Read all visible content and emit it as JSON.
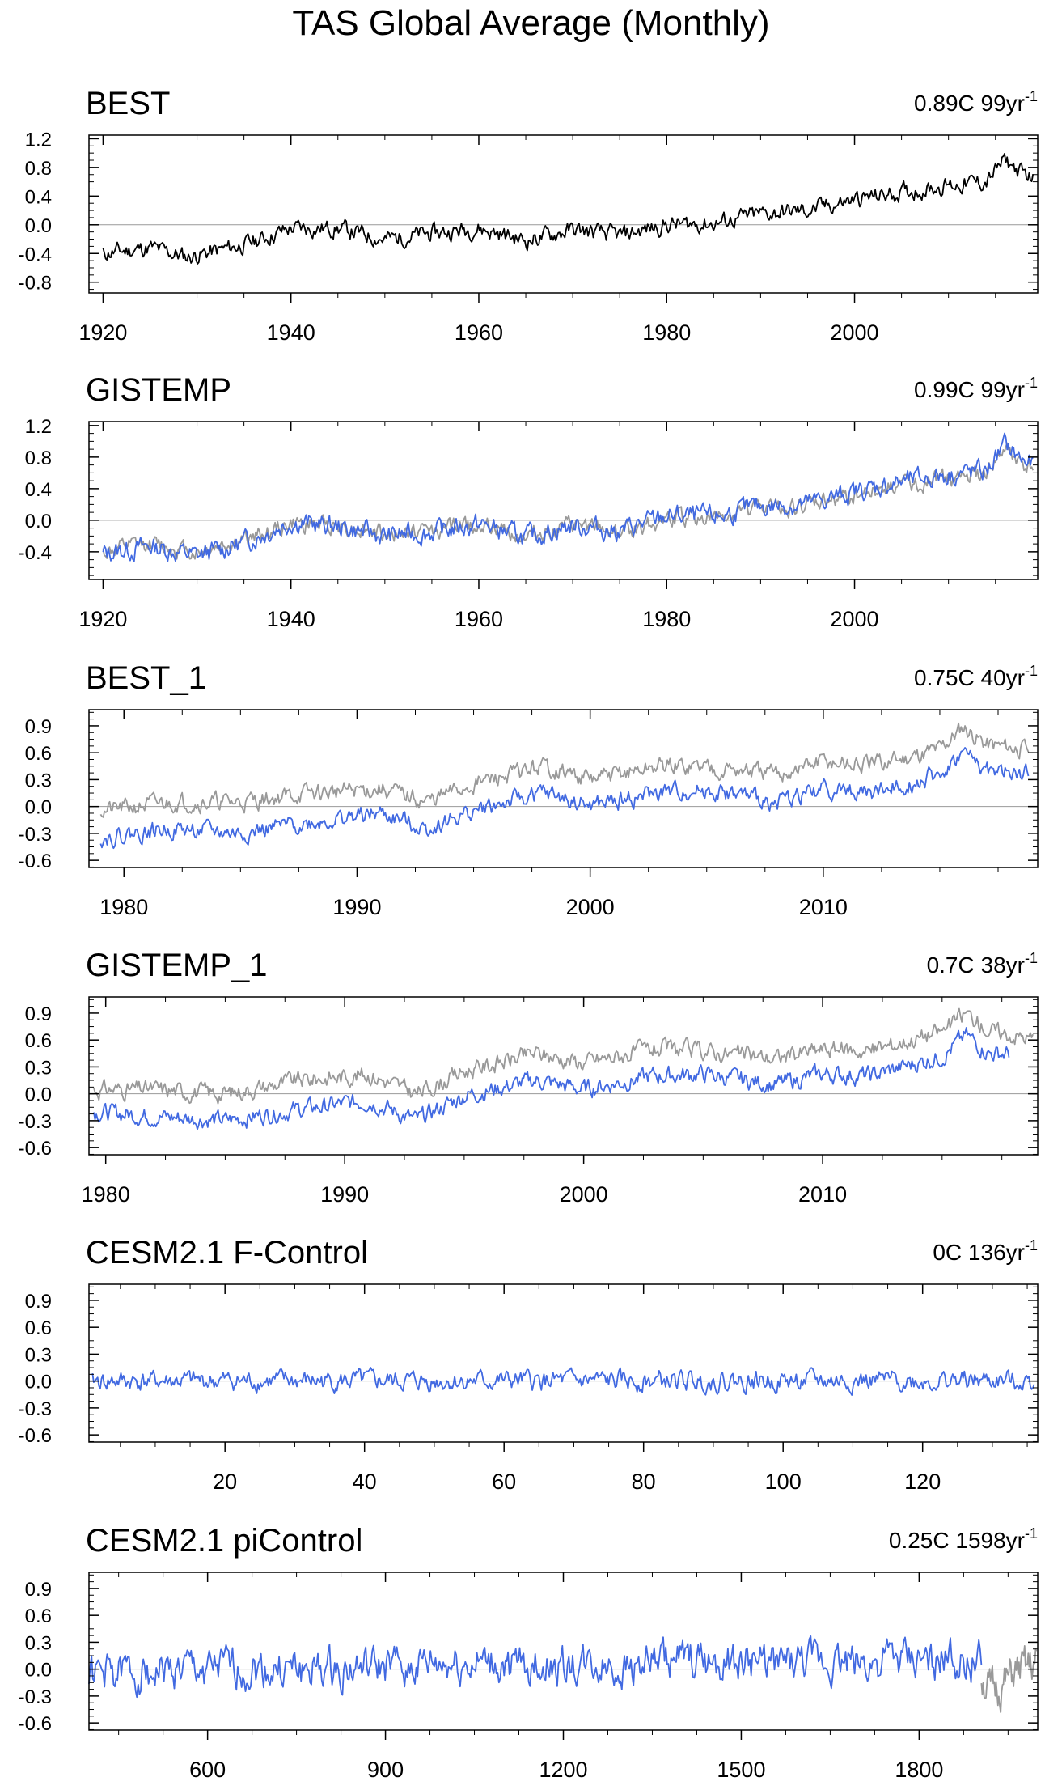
{
  "title": "TAS Global Average (Monthly)",
  "colors": {
    "obs": "#000000",
    "model": "#4169e1",
    "reference": "#999999",
    "frame": "#000000",
    "zero": "#999999"
  },
  "chart_data": [
    {
      "type": "line",
      "title": "BEST",
      "annotation": "0.89C 99yr",
      "annotation_sup": "-1",
      "xlim": [
        1918.5,
        2019.5
      ],
      "ylim": [
        -0.95,
        1.25
      ],
      "yticks": [
        -0.8,
        -0.4,
        0.0,
        0.4,
        0.8,
        1.2
      ],
      "ytick_labels": [
        "-0.8",
        "-0.4",
        "0.0",
        "0.4",
        "0.8",
        "1.2"
      ],
      "xticks": [
        1920,
        1940,
        1960,
        1980,
        2000
      ],
      "xtick_labels": [
        "1920",
        "1940",
        "1960",
        "1980",
        "2000"
      ],
      "series": [
        {
          "color": "#000000",
          "x": [
            1920,
            1925,
            1929,
            1935,
            1940,
            1945,
            1950,
            1955,
            1960,
            1965,
            1970,
            1975,
            1980,
            1985,
            1990,
            1995,
            2000,
            2005,
            2010,
            2014,
            2016,
            2018,
            2019
          ],
          "values": [
            -0.4,
            -0.32,
            -0.45,
            -0.28,
            -0.05,
            -0.05,
            -0.2,
            -0.12,
            -0.05,
            -0.22,
            -0.07,
            -0.15,
            0.0,
            0.02,
            0.15,
            0.2,
            0.35,
            0.45,
            0.55,
            0.6,
            0.9,
            0.7,
            0.65
          ],
          "noise": 0.11,
          "seed": 11
        }
      ]
    },
    {
      "type": "line",
      "title": "GISTEMP",
      "annotation": "0.99C 99yr",
      "annotation_sup": "-1",
      "xlim": [
        1918.5,
        2019.5
      ],
      "ylim": [
        -0.75,
        1.25
      ],
      "yticks": [
        -0.4,
        0.0,
        0.4,
        0.8,
        1.2
      ],
      "ytick_labels": [
        "-0.4",
        "0.0",
        "0.4",
        "0.8",
        "1.2"
      ],
      "xticks": [
        1920,
        1940,
        1960,
        1980,
        2000
      ],
      "xtick_labels": [
        "1920",
        "1940",
        "1960",
        "1980",
        "2000"
      ],
      "series": [
        {
          "color": "#999999",
          "x": [
            1920,
            1925,
            1930,
            1935,
            1940,
            1945,
            1950,
            1955,
            1960,
            1965,
            1970,
            1975,
            1980,
            1985,
            1990,
            1995,
            2000,
            2005,
            2010,
            2014,
            2016,
            2018,
            2019
          ],
          "values": [
            -0.4,
            -0.3,
            -0.4,
            -0.25,
            -0.05,
            -0.05,
            -0.18,
            -0.12,
            -0.05,
            -0.2,
            -0.08,
            -0.15,
            0.02,
            0.02,
            0.15,
            0.18,
            0.33,
            0.45,
            0.53,
            0.58,
            0.88,
            0.68,
            0.65
          ],
          "noise": 0.1,
          "seed": 12
        },
        {
          "color": "#4169e1",
          "x": [
            1920,
            1925,
            1930,
            1935,
            1940,
            1945,
            1950,
            1955,
            1960,
            1965,
            1970,
            1975,
            1980,
            1985,
            1990,
            1995,
            2000,
            2005,
            2010,
            2014,
            2016,
            2018,
            2019
          ],
          "values": [
            -0.42,
            -0.33,
            -0.45,
            -0.28,
            -0.02,
            -0.08,
            -0.2,
            -0.15,
            -0.05,
            -0.22,
            -0.06,
            -0.14,
            0.05,
            0.04,
            0.18,
            0.2,
            0.36,
            0.48,
            0.58,
            0.62,
            0.95,
            0.75,
            0.7
          ],
          "noise": 0.12,
          "seed": 13
        }
      ]
    },
    {
      "type": "line",
      "title": "BEST_1",
      "annotation": "0.75C 40yr",
      "annotation_sup": "-1",
      "xlim": [
        1978.5,
        2019.2
      ],
      "ylim": [
        -0.68,
        1.08
      ],
      "yticks": [
        -0.6,
        -0.3,
        0.0,
        0.3,
        0.6,
        0.9
      ],
      "ytick_labels": [
        "-0.6",
        "-0.3",
        "0.0",
        "0.3",
        "0.6",
        "0.9"
      ],
      "xticks": [
        1980,
        1990,
        2000,
        2010
      ],
      "xtick_labels": [
        "1980",
        "1990",
        "2000",
        "2010"
      ],
      "series": [
        {
          "color": "#999999",
          "x": [
            1979,
            1982,
            1985,
            1988,
            1991,
            1993,
            1995,
            1998,
            2000,
            2003,
            2005,
            2008,
            2010,
            2012,
            2015,
            2016,
            2017,
            2018.8
          ],
          "values": [
            -0.05,
            0.05,
            0.05,
            0.15,
            0.2,
            0.05,
            0.25,
            0.45,
            0.3,
            0.45,
            0.45,
            0.35,
            0.5,
            0.45,
            0.65,
            0.9,
            0.7,
            0.65
          ],
          "noise": 0.09,
          "seed": 21
        },
        {
          "color": "#4169e1",
          "x": [
            1979,
            1982,
            1985,
            1988,
            1991,
            1993,
            1995,
            1998,
            2000,
            2003,
            2005,
            2008,
            2010,
            2012,
            2015,
            2016,
            2017,
            2018.8
          ],
          "values": [
            -0.35,
            -0.25,
            -0.3,
            -0.18,
            -0.08,
            -0.25,
            -0.05,
            0.15,
            0.0,
            0.15,
            0.18,
            0.05,
            0.2,
            0.15,
            0.35,
            0.6,
            0.4,
            0.35
          ],
          "noise": 0.09,
          "seed": 22
        }
      ]
    },
    {
      "type": "line",
      "title": "GISTEMP_1",
      "annotation": "0.7C 38yr",
      "annotation_sup": "-1",
      "xlim": [
        1979.3,
        2019.0
      ],
      "ylim": [
        -0.68,
        1.08
      ],
      "yticks": [
        -0.6,
        -0.3,
        0.0,
        0.3,
        0.6,
        0.9
      ],
      "ytick_labels": [
        "-0.6",
        "-0.3",
        "0.0",
        "0.3",
        "0.6",
        "0.9"
      ],
      "xticks": [
        1980,
        1990,
        2000,
        2010
      ],
      "xtick_labels": [
        "1980",
        "1990",
        "2000",
        "2010"
      ],
      "series": [
        {
          "color": "#999999",
          "x": [
            1979.5,
            1982,
            1985,
            1988,
            1991,
            1993,
            1995,
            1998,
            2000,
            2003,
            2005,
            2008,
            2010,
            2012,
            2015,
            2016,
            2017,
            2018.8
          ],
          "values": [
            0.05,
            0.05,
            0.0,
            0.15,
            0.22,
            0.0,
            0.25,
            0.45,
            0.35,
            0.5,
            0.48,
            0.4,
            0.5,
            0.48,
            0.7,
            0.9,
            0.7,
            0.62
          ],
          "noise": 0.09,
          "seed": 31
        },
        {
          "color": "#4169e1",
          "x": [
            1979.5,
            1982,
            1985,
            1988,
            1991,
            1993,
            1995,
            1998,
            2000,
            2003,
            2005,
            2008,
            2010,
            2012,
            2015,
            2016,
            2017,
            2017.8
          ],
          "values": [
            -0.2,
            -0.25,
            -0.3,
            -0.18,
            -0.08,
            -0.3,
            -0.02,
            0.15,
            0.05,
            0.2,
            0.22,
            0.1,
            0.22,
            0.2,
            0.42,
            0.65,
            0.45,
            0.45
          ],
          "noise": 0.09,
          "seed": 32
        }
      ]
    },
    {
      "type": "line",
      "title": "CESM2.1 F-Control",
      "annotation": "0C 136yr",
      "annotation_sup": "-1",
      "xlim": [
        0.5,
        136.5
      ],
      "ylim": [
        -0.68,
        1.08
      ],
      "yticks": [
        -0.6,
        -0.3,
        0.0,
        0.3,
        0.6,
        0.9
      ],
      "ytick_labels": [
        "-0.6",
        "-0.3",
        "0.0",
        "0.3",
        "0.6",
        "0.9"
      ],
      "xticks": [
        20,
        40,
        60,
        80,
        100,
        120
      ],
      "xtick_labels": [
        "20",
        "40",
        "60",
        "80",
        "100",
        "120"
      ],
      "series": [
        {
          "color": "#4169e1",
          "x": [
            1,
            136
          ],
          "values": [
            0.0,
            0.0
          ],
          "noise": 0.1,
          "seed": 41
        }
      ]
    },
    {
      "type": "line",
      "title": "CESM2.1 piControl",
      "annotation": "0.25C 1598yr",
      "annotation_sup": "-1",
      "xlim": [
        400,
        2000
      ],
      "ylim": [
        -0.68,
        1.08
      ],
      "yticks": [
        -0.6,
        -0.3,
        0.0,
        0.3,
        0.6,
        0.9
      ],
      "ytick_labels": [
        "-0.6",
        "-0.3",
        "0.0",
        "0.3",
        "0.6",
        "0.9"
      ],
      "xticks": [
        600,
        900,
        1200,
        1500,
        1800
      ],
      "xtick_labels": [
        "600",
        "900",
        "1200",
        "1500",
        "1800"
      ],
      "series": [
        {
          "color": "#999999",
          "x": [
            1905,
            1920,
            1940,
            1960,
            1980,
            1998
          ],
          "values": [
            -0.1,
            -0.25,
            -0.2,
            -0.05,
            0.0,
            0.05
          ],
          "noise": 0.2,
          "seed": 51
        },
        {
          "color": "#4169e1",
          "x": [
            400,
            600,
            800,
            1000,
            1200,
            1400,
            1600,
            1800,
            1905
          ],
          "values": [
            -0.05,
            0.0,
            -0.02,
            0.05,
            0.02,
            0.08,
            0.05,
            0.08,
            0.1
          ],
          "noise": 0.2,
          "seed": 52
        }
      ]
    }
  ]
}
